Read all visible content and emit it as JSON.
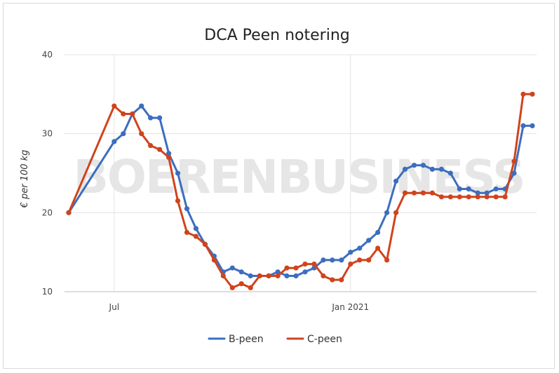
{
  "chart_data": {
    "type": "line",
    "title": "DCA Peen notering",
    "ylabel": "€ per 100 kg",
    "xlabel": "",
    "ylim": [
      10,
      40
    ],
    "yticks": [
      10,
      20,
      30,
      40
    ],
    "x_tick_labels": [
      {
        "label": "Jul",
        "at_index": 5
      },
      {
        "label": "Jan 2021",
        "at_index": 31
      }
    ],
    "watermark": "BOERENBUSINESS",
    "grid": true,
    "legend": "bottom-center",
    "series": [
      {
        "name": "B-peen",
        "color": "#3c6ebf",
        "points": [
          [
            0,
            20
          ],
          [
            5,
            29
          ],
          [
            6,
            30
          ],
          [
            7,
            32.5
          ],
          [
            8,
            33.5
          ],
          [
            9,
            32
          ],
          [
            10,
            32
          ],
          [
            11,
            27.5
          ],
          [
            12,
            25
          ],
          [
            13,
            20.5
          ],
          [
            14,
            18
          ],
          [
            15,
            16
          ],
          [
            16,
            14.5
          ],
          [
            17,
            12.5
          ],
          [
            18,
            13
          ],
          [
            19,
            12.5
          ],
          [
            20,
            12
          ],
          [
            21,
            12
          ],
          [
            22,
            12
          ],
          [
            23,
            12.5
          ],
          [
            24,
            12
          ],
          [
            25,
            12
          ],
          [
            26,
            12.5
          ],
          [
            27,
            13
          ],
          [
            28,
            14
          ],
          [
            29,
            14
          ],
          [
            30,
            14
          ],
          [
            31,
            15
          ],
          [
            32,
            15.5
          ],
          [
            33,
            16.5
          ],
          [
            34,
            17.5
          ],
          [
            35,
            20
          ],
          [
            36,
            24
          ],
          [
            37,
            25.5
          ],
          [
            38,
            26
          ],
          [
            39,
            26
          ],
          [
            40,
            25.5
          ],
          [
            41,
            25.5
          ],
          [
            42,
            25
          ],
          [
            43,
            23
          ],
          [
            44,
            23
          ],
          [
            45,
            22.5
          ],
          [
            46,
            22.5
          ],
          [
            47,
            23
          ],
          [
            48,
            23
          ],
          [
            49,
            25
          ],
          [
            50,
            31
          ],
          [
            51,
            31
          ]
        ]
      },
      {
        "name": "C-peen",
        "color": "#d0431d",
        "points": [
          [
            0,
            20
          ],
          [
            5,
            33.5
          ],
          [
            6,
            32.5
          ],
          [
            7,
            32.5
          ],
          [
            8,
            30
          ],
          [
            9,
            28.5
          ],
          [
            10,
            28
          ],
          [
            11,
            27
          ],
          [
            12,
            21.5
          ],
          [
            13,
            17.5
          ],
          [
            14,
            17
          ],
          [
            15,
            16
          ],
          [
            16,
            14
          ],
          [
            17,
            12
          ],
          [
            18,
            10.5
          ],
          [
            19,
            11
          ],
          [
            20,
            10.5
          ],
          [
            21,
            12
          ],
          [
            22,
            12
          ],
          [
            23,
            12
          ],
          [
            24,
            13
          ],
          [
            25,
            13
          ],
          [
            26,
            13.5
          ],
          [
            27,
            13.5
          ],
          [
            28,
            12
          ],
          [
            29,
            11.5
          ],
          [
            30,
            11.5
          ],
          [
            31,
            13.5
          ],
          [
            32,
            14
          ],
          [
            33,
            14
          ],
          [
            34,
            15.5
          ],
          [
            35,
            14
          ],
          [
            36,
            20
          ],
          [
            37,
            22.5
          ],
          [
            38,
            22.5
          ],
          [
            39,
            22.5
          ],
          [
            40,
            22.5
          ],
          [
            41,
            22
          ],
          [
            42,
            22
          ],
          [
            43,
            22
          ],
          [
            44,
            22
          ],
          [
            45,
            22
          ],
          [
            46,
            22
          ],
          [
            47,
            22
          ],
          [
            48,
            22
          ],
          [
            49,
            26.5
          ],
          [
            50,
            35
          ],
          [
            51,
            35
          ]
        ]
      }
    ]
  }
}
